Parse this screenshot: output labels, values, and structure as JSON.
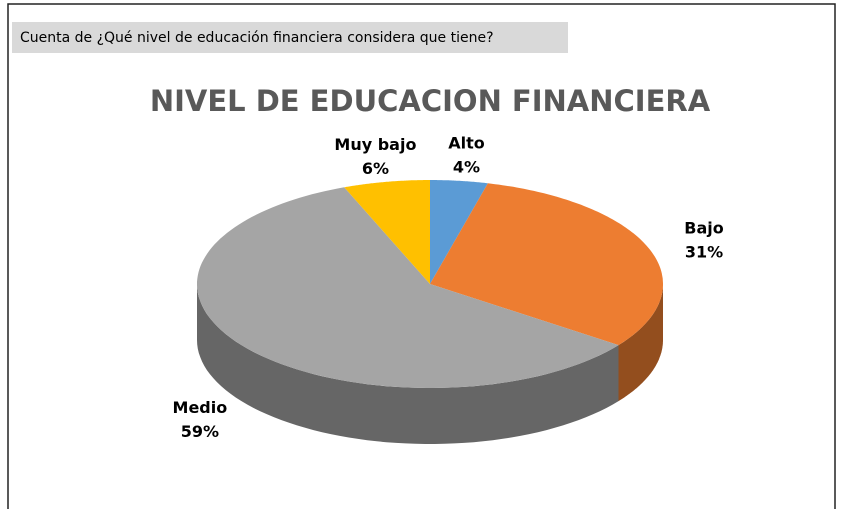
{
  "chart_data": {
    "type": "pie",
    "field_button": "Cuenta de ¿Qué nivel de educación financiera considera que tiene?",
    "title": "NIVEL DE EDUCACION FINANCIERA",
    "categories": [
      "Alto",
      "Bajo",
      "Medio",
      "Muy bajo"
    ],
    "values": [
      4,
      31,
      59,
      6
    ],
    "value_labels": [
      "4%",
      "31%",
      "59%",
      "6%"
    ],
    "colors": [
      "#5b9bd5",
      "#ed7d31",
      "#a5a5a5",
      "#ffc000"
    ]
  }
}
